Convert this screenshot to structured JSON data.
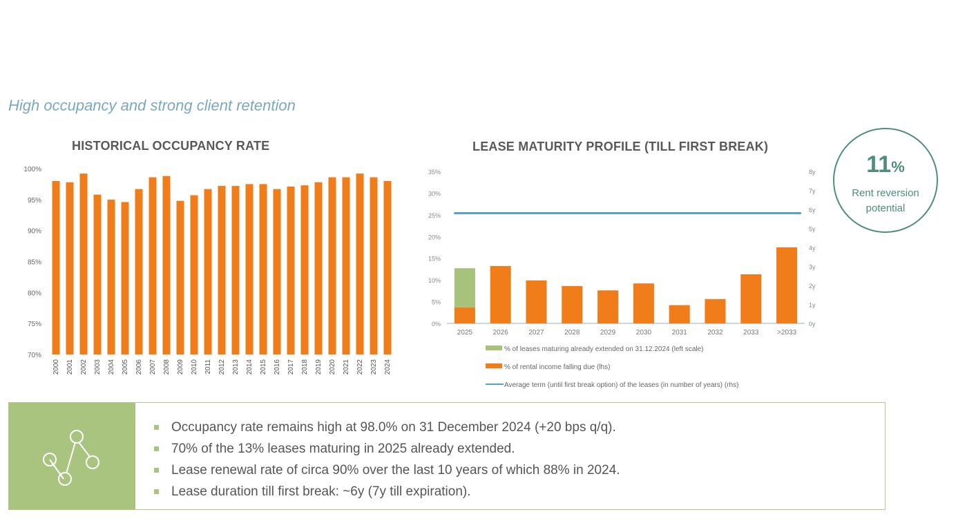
{
  "subtitle": "High occupancy and strong client retention",
  "colors": {
    "orange": "#f07d1a",
    "green": "#a7c27a",
    "blue": "#4aa3d6",
    "teal": "#4e8d7c"
  },
  "callout": {
    "value": "11",
    "unit": "%",
    "label": "Rent reversion potential"
  },
  "bullets": [
    "Occupancy rate remains high at 98.0% on 31 December 2024 (+20 bps q/q).",
    "70% of the 13% leases maturing in 2025 already extended.",
    "Lease renewal rate of circa 90% over the last 10 years of which 88% in 2024.",
    "Lease duration till first break: ~6y (7y till expiration)."
  ],
  "icon": "connected-nodes-icon",
  "chart_data": [
    {
      "type": "bar",
      "title": "HISTORICAL OCCUPANCY RATE",
      "categories": [
        "2000",
        "2001",
        "2002",
        "2003",
        "2004",
        "2005",
        "2006",
        "2007",
        "2008",
        "2009",
        "2010",
        "2011",
        "2012",
        "2013",
        "2014",
        "2015",
        "2016",
        "2017",
        "2018",
        "2019",
        "2020",
        "2021",
        "2022",
        "2023",
        "2024"
      ],
      "values": [
        98.0,
        97.8,
        99.2,
        95.8,
        95.0,
        94.6,
        96.7,
        98.6,
        98.8,
        94.8,
        95.7,
        96.7,
        97.2,
        97.2,
        97.5,
        97.5,
        96.7,
        97.1,
        97.3,
        97.8,
        98.6,
        98.6,
        99.2,
        98.6,
        98.0
      ],
      "ylim": [
        70,
        100
      ],
      "yticks": [
        "70%",
        "75%",
        "80%",
        "85%",
        "90%",
        "95%",
        "100%"
      ],
      "color": "#f07d1a"
    },
    {
      "type": "bar",
      "title": "LEASE MATURITY PROFILE (TILL FIRST BREAK)",
      "categories": [
        "2025",
        "2026",
        "2027",
        "2028",
        "2029",
        "2030",
        "2031",
        "2032",
        "2033",
        ">2033"
      ],
      "series": [
        {
          "name": "% of rental income falling due (lhs)",
          "values": [
            3.7,
            13.2,
            9.9,
            8.6,
            7.6,
            9.2,
            4.2,
            5.6,
            11.3,
            17.5
          ],
          "color": "#f07d1a"
        },
        {
          "name": "% of leases maturing already extended on 31.12.2024 (left scale)",
          "values": [
            9.0,
            0,
            0,
            0,
            0,
            0,
            0,
            0,
            0,
            0
          ],
          "color": "#a7c27a"
        },
        {
          "name": "Average term (until first break option) of the leases (in number of years) (rhs)",
          "type": "line",
          "values": [
            5.8,
            5.8,
            5.8,
            5.8,
            5.8,
            5.8,
            5.8,
            5.8,
            5.8,
            5.8
          ],
          "color": "#4aa3d6"
        }
      ],
      "stacked": true,
      "ylim": [
        0,
        35
      ],
      "yticks": [
        "0%",
        "5%",
        "10%",
        "15%",
        "20%",
        "25%",
        "30%",
        "35%"
      ],
      "y2lim": [
        0,
        8
      ],
      "y2ticks": [
        "0y",
        "1y",
        "2y",
        "3y",
        "4y",
        "5y",
        "6y",
        "7y",
        "8y"
      ]
    }
  ]
}
